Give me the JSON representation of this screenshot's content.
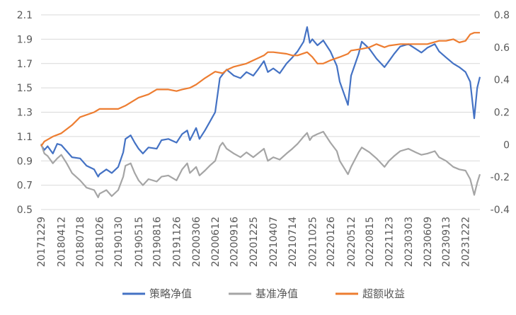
{
  "chart_data": {
    "type": "line",
    "title": "",
    "xlabel": "",
    "ylabel": "",
    "grid": true,
    "legend_position": "bottom",
    "y_left": {
      "min": 0.5,
      "max": 2.1,
      "ticks": [
        "0.5",
        "0.7",
        "0.9",
        "1.1",
        "1.3",
        "1.5",
        "1.7",
        "1.9",
        "2.1"
      ]
    },
    "y_right": {
      "min": -0.4,
      "max": 0.8,
      "ticks": [
        "-0.4",
        "-0.2",
        "0",
        "0.2",
        "0.4",
        "0.6",
        "0.8"
      ]
    },
    "x_tick_labels": [
      "20171229",
      "20180412",
      "20180718",
      "20181026",
      "20190130",
      "20190515",
      "20190816",
      "20191126",
      "20200306",
      "20200612",
      "20200916",
      "20201225",
      "20210407",
      "20210714",
      "20211025",
      "20220126",
      "20220512",
      "20220815",
      "20221123",
      "20230303",
      "20230609",
      "20230913",
      "20231222"
    ],
    "x_range": [
      "20171229",
      "20240305"
    ],
    "series": [
      {
        "name": "策略净值",
        "axis": "left",
        "color": "#4472C4",
        "points": [
          [
            "20171229",
            1.03
          ],
          [
            "20180115",
            0.99
          ],
          [
            "20180201",
            1.02
          ],
          [
            "20180228",
            0.96
          ],
          [
            "20180322",
            1.04
          ],
          [
            "20180412",
            1.03
          ],
          [
            "20180510",
            0.98
          ],
          [
            "20180606",
            0.93
          ],
          [
            "20180718",
            0.92
          ],
          [
            "20180820",
            0.86
          ],
          [
            "20180928",
            0.83
          ],
          [
            "20181019",
            0.77
          ],
          [
            "20181026",
            0.79
          ],
          [
            "20181130",
            0.83
          ],
          [
            "20181228",
            0.8
          ],
          [
            "20190130",
            0.85
          ],
          [
            "20190225",
            0.97
          ],
          [
            "20190308",
            1.08
          ],
          [
            "20190404",
            1.11
          ],
          [
            "20190425",
            1.05
          ],
          [
            "20190515",
            1.0
          ],
          [
            "20190606",
            0.96
          ],
          [
            "20190705",
            1.01
          ],
          [
            "20190816",
            1.0
          ],
          [
            "20190910",
            1.07
          ],
          [
            "20191015",
            1.08
          ],
          [
            "20191126",
            1.05
          ],
          [
            "20191225",
            1.12
          ],
          [
            "20200120",
            1.15
          ],
          [
            "20200203",
            1.07
          ],
          [
            "20200306",
            1.17
          ],
          [
            "20200323",
            1.08
          ],
          [
            "20200420",
            1.15
          ],
          [
            "20200515",
            1.22
          ],
          [
            "20200612",
            1.3
          ],
          [
            "20200706",
            1.58
          ],
          [
            "20200720",
            1.61
          ],
          [
            "20200810",
            1.65
          ],
          [
            "20200916",
            1.6
          ],
          [
            "20201020",
            1.58
          ],
          [
            "20201120",
            1.63
          ],
          [
            "20201225",
            1.6
          ],
          [
            "20210118",
            1.65
          ],
          [
            "20210218",
            1.72
          ],
          [
            "20210310",
            1.63
          ],
          [
            "20210407",
            1.66
          ],
          [
            "20210510",
            1.62
          ],
          [
            "20210614",
            1.7
          ],
          [
            "20210714",
            1.75
          ],
          [
            "20210810",
            1.8
          ],
          [
            "20210910",
            1.88
          ],
          [
            "20210928",
            2.0
          ],
          [
            "20211012",
            1.87
          ],
          [
            "20211025",
            1.9
          ],
          [
            "20211120",
            1.85
          ],
          [
            "20211220",
            1.89
          ],
          [
            "20220126",
            1.8
          ],
          [
            "20220228",
            1.68
          ],
          [
            "20220315",
            1.55
          ],
          [
            "20220426",
            1.36
          ],
          [
            "20220512",
            1.6
          ],
          [
            "20220620",
            1.78
          ],
          [
            "20220706",
            1.88
          ],
          [
            "20220815",
            1.82
          ],
          [
            "20220920",
            1.74
          ],
          [
            "20221031",
            1.67
          ],
          [
            "20221123",
            1.72
          ],
          [
            "20221220",
            1.78
          ],
          [
            "20230120",
            1.84
          ],
          [
            "20230303",
            1.86
          ],
          [
            "20230410",
            1.82
          ],
          [
            "20230509",
            1.79
          ],
          [
            "20230609",
            1.83
          ],
          [
            "20230717",
            1.86
          ],
          [
            "20230808",
            1.8
          ],
          [
            "20230913",
            1.75
          ],
          [
            "20231020",
            1.7
          ],
          [
            "20231120",
            1.67
          ],
          [
            "20231222",
            1.63
          ],
          [
            "20240115",
            1.55
          ],
          [
            "20240205",
            1.25
          ],
          [
            "20240220",
            1.5
          ],
          [
            "20240305",
            1.59
          ]
        ]
      },
      {
        "name": "基准净值",
        "axis": "left",
        "color": "#A5A5A5",
        "points": [
          [
            "20171229",
            1.04
          ],
          [
            "20180115",
            0.96
          ],
          [
            "20180201",
            0.94
          ],
          [
            "20180228",
            0.88
          ],
          [
            "20180322",
            0.92
          ],
          [
            "20180412",
            0.95
          ],
          [
            "20180510",
            0.88
          ],
          [
            "20180606",
            0.8
          ],
          [
            "20180718",
            0.74
          ],
          [
            "20180820",
            0.68
          ],
          [
            "20180928",
            0.66
          ],
          [
            "20181019",
            0.6
          ],
          [
            "20181026",
            0.63
          ],
          [
            "20181130",
            0.66
          ],
          [
            "20181228",
            0.61
          ],
          [
            "20190130",
            0.66
          ],
          [
            "20190225",
            0.77
          ],
          [
            "20190308",
            0.86
          ],
          [
            "20190404",
            0.88
          ],
          [
            "20190425",
            0.8
          ],
          [
            "20190515",
            0.74
          ],
          [
            "20190606",
            0.7
          ],
          [
            "20190705",
            0.75
          ],
          [
            "20190816",
            0.73
          ],
          [
            "20190910",
            0.77
          ],
          [
            "20191015",
            0.78
          ],
          [
            "20191126",
            0.74
          ],
          [
            "20191225",
            0.83
          ],
          [
            "20200120",
            0.88
          ],
          [
            "20200203",
            0.8
          ],
          [
            "20200306",
            0.85
          ],
          [
            "20200323",
            0.78
          ],
          [
            "20200420",
            0.82
          ],
          [
            "20200515",
            0.86
          ],
          [
            "20200612",
            0.9
          ],
          [
            "20200706",
            1.02
          ],
          [
            "20200720",
            1.05
          ],
          [
            "20200810",
            1.0
          ],
          [
            "20200916",
            0.96
          ],
          [
            "20201020",
            0.93
          ],
          [
            "20201120",
            0.97
          ],
          [
            "20201225",
            0.93
          ],
          [
            "20210118",
            0.96
          ],
          [
            "20210218",
            1.0
          ],
          [
            "20210310",
            0.9
          ],
          [
            "20210407",
            0.93
          ],
          [
            "20210510",
            0.91
          ],
          [
            "20210614",
            0.96
          ],
          [
            "20210714",
            1.0
          ],
          [
            "20210810",
            1.04
          ],
          [
            "20210910",
            1.1
          ],
          [
            "20210928",
            1.13
          ],
          [
            "20211012",
            1.07
          ],
          [
            "20211025",
            1.1
          ],
          [
            "20211120",
            1.12
          ],
          [
            "20211220",
            1.14
          ],
          [
            "20220126",
            1.05
          ],
          [
            "20220228",
            0.98
          ],
          [
            "20220315",
            0.9
          ],
          [
            "20220426",
            0.79
          ],
          [
            "20220512",
            0.85
          ],
          [
            "20220620",
            0.97
          ],
          [
            "20220706",
            1.01
          ],
          [
            "20220815",
            0.97
          ],
          [
            "20220920",
            0.92
          ],
          [
            "20221031",
            0.85
          ],
          [
            "20221123",
            0.9
          ],
          [
            "20221220",
            0.94
          ],
          [
            "20230120",
            0.98
          ],
          [
            "20230303",
            1.0
          ],
          [
            "20230410",
            0.97
          ],
          [
            "20230509",
            0.95
          ],
          [
            "20230609",
            0.96
          ],
          [
            "20230717",
            0.98
          ],
          [
            "20230808",
            0.93
          ],
          [
            "20230913",
            0.9
          ],
          [
            "20231020",
            0.85
          ],
          [
            "20231120",
            0.83
          ],
          [
            "20231222",
            0.82
          ],
          [
            "20240115",
            0.75
          ],
          [
            "20240205",
            0.62
          ],
          [
            "20240220",
            0.72
          ],
          [
            "20240305",
            0.79
          ]
        ]
      },
      {
        "name": "超额收益",
        "axis": "right",
        "color": "#ED7D31",
        "points": [
          [
            "20171229",
            -0.01
          ],
          [
            "20180115",
            0.02
          ],
          [
            "20180228",
            0.05
          ],
          [
            "20180412",
            0.07
          ],
          [
            "20180606",
            0.12
          ],
          [
            "20180718",
            0.17
          ],
          [
            "20180928",
            0.2
          ],
          [
            "20181026",
            0.22
          ],
          [
            "20181228",
            0.22
          ],
          [
            "20190130",
            0.22
          ],
          [
            "20190308",
            0.24
          ],
          [
            "20190515",
            0.29
          ],
          [
            "20190705",
            0.31
          ],
          [
            "20190816",
            0.34
          ],
          [
            "20191015",
            0.34
          ],
          [
            "20191126",
            0.33
          ],
          [
            "20191225",
            0.34
          ],
          [
            "20200203",
            0.35
          ],
          [
            "20200306",
            0.37
          ],
          [
            "20200420",
            0.41
          ],
          [
            "20200612",
            0.45
          ],
          [
            "20200720",
            0.44
          ],
          [
            "20200810",
            0.46
          ],
          [
            "20200916",
            0.48
          ],
          [
            "20201120",
            0.5
          ],
          [
            "20201225",
            0.52
          ],
          [
            "20210218",
            0.55
          ],
          [
            "20210310",
            0.57
          ],
          [
            "20210407",
            0.57
          ],
          [
            "20210614",
            0.56
          ],
          [
            "20210714",
            0.55
          ],
          [
            "20210810",
            0.55
          ],
          [
            "20210928",
            0.57
          ],
          [
            "20211025",
            0.54
          ],
          [
            "20211120",
            0.5
          ],
          [
            "20211220",
            0.5
          ],
          [
            "20220126",
            0.52
          ],
          [
            "20220315",
            0.54
          ],
          [
            "20220426",
            0.56
          ],
          [
            "20220512",
            0.58
          ],
          [
            "20220706",
            0.59
          ],
          [
            "20220815",
            0.6
          ],
          [
            "20220920",
            0.62
          ],
          [
            "20221031",
            0.6
          ],
          [
            "20221123",
            0.61
          ],
          [
            "20230120",
            0.62
          ],
          [
            "20230303",
            0.62
          ],
          [
            "20230509",
            0.62
          ],
          [
            "20230609",
            0.62
          ],
          [
            "20230808",
            0.64
          ],
          [
            "20230913",
            0.64
          ],
          [
            "20231020",
            0.65
          ],
          [
            "20231120",
            0.63
          ],
          [
            "20231222",
            0.64
          ],
          [
            "20240115",
            0.68
          ],
          [
            "20240205",
            0.69
          ],
          [
            "20240305",
            0.69
          ]
        ]
      }
    ]
  }
}
